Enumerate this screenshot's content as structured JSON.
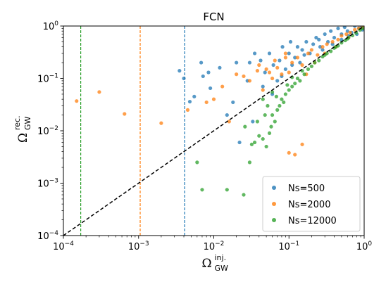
{
  "chart_data": {
    "type": "scatter",
    "title": "FCN",
    "xscale": "log",
    "yscale": "log",
    "xlim": [
      0.0001,
      1
    ],
    "ylim": [
      0.0001,
      1
    ],
    "x_tick_labels": [
      {
        "base": "10",
        "exp": "−4",
        "value": 0.0001
      },
      {
        "base": "10",
        "exp": "−3",
        "value": 0.001
      },
      {
        "base": "10",
        "exp": "−2",
        "value": 0.01
      },
      {
        "base": "10",
        "exp": "−1",
        "value": 0.1
      },
      {
        "base": "10",
        "exp": "0",
        "value": 1
      }
    ],
    "y_tick_labels": [
      {
        "base": "10",
        "exp": "−4",
        "value": 0.0001
      },
      {
        "base": "10",
        "exp": "−3",
        "value": 0.001
      },
      {
        "base": "10",
        "exp": "−2",
        "value": 0.01
      },
      {
        "base": "10",
        "exp": "−1",
        "value": 0.1
      },
      {
        "base": "10",
        "exp": "0",
        "value": 1
      }
    ],
    "xlabel": {
      "symbol": "Ω",
      "sup": "inj.",
      "sub": "GW"
    },
    "ylabel": {
      "symbol": "Ω",
      "sup": "rec.",
      "sub": "GW"
    },
    "legend_position": "lower-right",
    "reference_line": {
      "type": "diagonal y=x",
      "color": "#000000",
      "style": "dashed"
    },
    "series": [
      {
        "name": "Ns=500",
        "color": "#1f77b4",
        "vline_x": 0.0041,
        "points": [
          [
            0.004,
            0.1
          ],
          [
            0.0055,
            0.045
          ],
          [
            0.0048,
            0.036
          ],
          [
            0.0068,
            0.2
          ],
          [
            0.0085,
            0.13
          ],
          [
            0.009,
            0.065
          ],
          [
            0.012,
            0.16
          ],
          [
            0.02,
            0.2
          ],
          [
            0.028,
            0.09
          ],
          [
            0.03,
            0.2
          ],
          [
            0.035,
            0.3
          ],
          [
            0.042,
            0.22
          ],
          [
            0.048,
            0.13
          ],
          [
            0.055,
            0.3
          ],
          [
            0.062,
            0.18
          ],
          [
            0.075,
            0.22
          ],
          [
            0.082,
            0.4
          ],
          [
            0.09,
            0.15
          ],
          [
            0.1,
            0.3
          ],
          [
            0.105,
            0.5
          ],
          [
            0.12,
            0.25
          ],
          [
            0.13,
            0.4
          ],
          [
            0.15,
            0.35
          ],
          [
            0.17,
            0.5
          ],
          [
            0.19,
            0.3
          ],
          [
            0.21,
            0.45
          ],
          [
            0.23,
            0.6
          ],
          [
            0.25,
            0.55
          ],
          [
            0.28,
            0.35
          ],
          [
            0.3,
            0.7
          ],
          [
            0.33,
            0.5
          ],
          [
            0.36,
            0.8
          ],
          [
            0.4,
            0.6
          ],
          [
            0.45,
            0.9
          ],
          [
            0.5,
            0.7
          ],
          [
            0.55,
            0.95
          ],
          [
            0.6,
            0.8
          ],
          [
            0.68,
            0.75
          ],
          [
            0.75,
            1.0
          ],
          [
            0.85,
            0.9
          ],
          [
            0.95,
            0.85
          ],
          [
            0.018,
            0.035
          ],
          [
            0.022,
            0.006
          ],
          [
            0.045,
            0.07
          ],
          [
            0.06,
            0.05
          ],
          [
            0.07,
            0.09
          ],
          [
            0.08,
            0.11
          ],
          [
            0.0035,
            0.14
          ],
          [
            0.0072,
            0.11
          ],
          [
            0.015,
            0.02
          ],
          [
            0.033,
            0.015
          ],
          [
            0.11,
            0.18
          ],
          [
            0.14,
            0.2
          ],
          [
            0.16,
            0.28
          ],
          [
            0.26,
            0.4
          ],
          [
            0.38,
            0.45
          ],
          [
            0.5,
            0.55
          ],
          [
            0.62,
            0.65
          ],
          [
            0.8,
            0.7
          ],
          [
            0.92,
            1.0
          ]
        ]
      },
      {
        "name": "Ns=2000",
        "color": "#ff7f0e",
        "vline_x": 0.00105,
        "points": [
          [
            0.00015,
            0.037
          ],
          [
            0.0003,
            0.055
          ],
          [
            0.00065,
            0.021
          ],
          [
            0.002,
            0.014
          ],
          [
            0.0045,
            0.025
          ],
          [
            0.008,
            0.035
          ],
          [
            0.01,
            0.04
          ],
          [
            0.013,
            0.07
          ],
          [
            0.016,
            0.015
          ],
          [
            0.02,
            0.12
          ],
          [
            0.025,
            0.11
          ],
          [
            0.03,
            0.09
          ],
          [
            0.038,
            0.14
          ],
          [
            0.045,
            0.06
          ],
          [
            0.05,
            0.15
          ],
          [
            0.06,
            0.1
          ],
          [
            0.07,
            0.16
          ],
          [
            0.08,
            0.12
          ],
          [
            0.09,
            0.3
          ],
          [
            0.1,
            0.13
          ],
          [
            0.11,
            0.2
          ],
          [
            0.13,
            0.25
          ],
          [
            0.15,
            0.18
          ],
          [
            0.18,
            0.3
          ],
          [
            0.2,
            0.35
          ],
          [
            0.24,
            0.28
          ],
          [
            0.28,
            0.4
          ],
          [
            0.32,
            0.45
          ],
          [
            0.38,
            0.5
          ],
          [
            0.45,
            0.55
          ],
          [
            0.5,
            0.65
          ],
          [
            0.58,
            0.7
          ],
          [
            0.65,
            0.75
          ],
          [
            0.75,
            0.85
          ],
          [
            0.85,
            0.9
          ],
          [
            0.1,
            0.0038
          ],
          [
            0.15,
            0.0055
          ],
          [
            0.12,
            0.0035
          ],
          [
            0.09,
            0.25
          ],
          [
            0.04,
            0.18
          ],
          [
            0.055,
            0.13
          ],
          [
            0.065,
            0.22
          ],
          [
            0.17,
            0.12
          ],
          [
            0.22,
            0.2
          ],
          [
            0.3,
            0.3
          ],
          [
            0.42,
            0.4
          ],
          [
            0.62,
            0.6
          ],
          [
            0.95,
            0.95
          ]
        ]
      },
      {
        "name": "Ns=12000",
        "color": "#2ca02c",
        "vline_x": 0.00017,
        "points": [
          [
            0.006,
            0.0025
          ],
          [
            0.007,
            0.00075
          ],
          [
            0.015,
            0.00075
          ],
          [
            0.025,
            0.0006
          ],
          [
            0.03,
            0.0025
          ],
          [
            0.032,
            0.0055
          ],
          [
            0.035,
            0.006
          ],
          [
            0.04,
            0.008
          ],
          [
            0.045,
            0.007
          ],
          [
            0.05,
            0.005
          ],
          [
            0.055,
            0.009
          ],
          [
            0.058,
            0.012
          ],
          [
            0.06,
            0.02
          ],
          [
            0.065,
            0.015
          ],
          [
            0.07,
            0.025
          ],
          [
            0.075,
            0.03
          ],
          [
            0.08,
            0.04
          ],
          [
            0.085,
            0.035
          ],
          [
            0.09,
            0.05
          ],
          [
            0.1,
            0.06
          ],
          [
            0.11,
            0.07
          ],
          [
            0.12,
            0.08
          ],
          [
            0.13,
            0.1
          ],
          [
            0.14,
            0.09
          ],
          [
            0.16,
            0.12
          ],
          [
            0.18,
            0.15
          ],
          [
            0.2,
            0.17
          ],
          [
            0.22,
            0.2
          ],
          [
            0.25,
            0.22
          ],
          [
            0.28,
            0.26
          ],
          [
            0.32,
            0.3
          ],
          [
            0.36,
            0.33
          ],
          [
            0.4,
            0.38
          ],
          [
            0.45,
            0.42
          ],
          [
            0.5,
            0.48
          ],
          [
            0.56,
            0.53
          ],
          [
            0.62,
            0.6
          ],
          [
            0.7,
            0.66
          ],
          [
            0.78,
            0.74
          ],
          [
            0.88,
            0.84
          ],
          [
            0.026,
            0.012
          ],
          [
            0.038,
            0.015
          ],
          [
            0.048,
            0.02
          ],
          [
            0.052,
            0.03
          ],
          [
            0.068,
            0.045
          ],
          [
            0.095,
            0.075
          ],
          [
            0.045,
            0.04
          ],
          [
            0.06,
            0.055
          ],
          [
            0.11,
            0.105
          ],
          [
            0.15,
            0.14
          ],
          [
            0.3,
            0.28
          ],
          [
            0.42,
            0.4
          ],
          [
            0.6,
            0.57
          ],
          [
            0.95,
            0.9
          ]
        ]
      }
    ]
  }
}
